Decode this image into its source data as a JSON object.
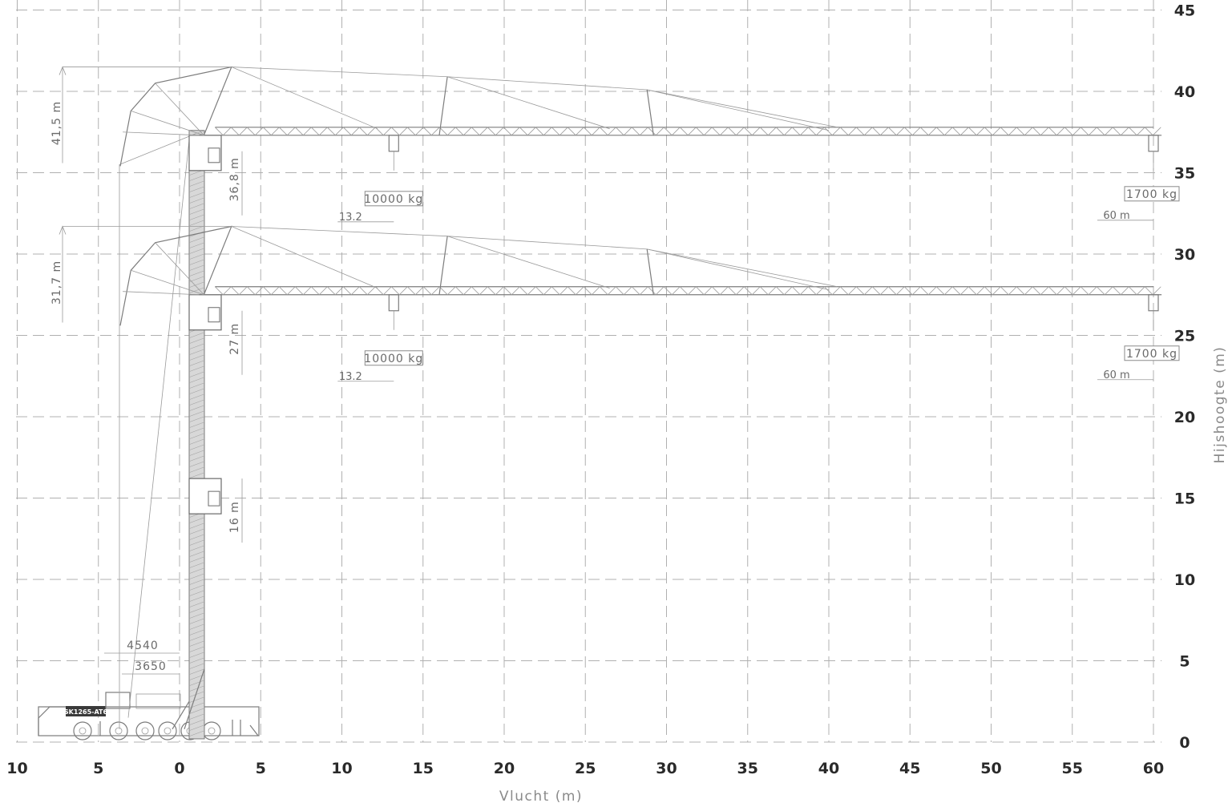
{
  "chart_data": {
    "type": "diagram",
    "xlabel": "Vlucht (m)",
    "ylabel": "Hijshoogte (m)",
    "x_ticks": [
      {
        "label": "10",
        "value": -10
      },
      {
        "label": "5",
        "value": -5
      },
      {
        "label": "0",
        "value": 0
      },
      {
        "label": "5",
        "value": 5
      },
      {
        "label": "10",
        "value": 10
      },
      {
        "label": "15",
        "value": 15
      },
      {
        "label": "20",
        "value": 20
      },
      {
        "label": "25",
        "value": 25
      },
      {
        "label": "30",
        "value": 30
      },
      {
        "label": "35",
        "value": 35
      },
      {
        "label": "40",
        "value": 40
      },
      {
        "label": "45",
        "value": 45
      },
      {
        "label": "50",
        "value": 50
      },
      {
        "label": "55",
        "value": 55
      },
      {
        "label": "60",
        "value": 60
      }
    ],
    "y_ticks": [
      {
        "label": "0",
        "value": 0
      },
      {
        "label": "5",
        "value": 5
      },
      {
        "label": "10",
        "value": 10
      },
      {
        "label": "15",
        "value": 15
      },
      {
        "label": "20",
        "value": 20
      },
      {
        "label": "25",
        "value": 25
      },
      {
        "label": "30",
        "value": 30
      },
      {
        "label": "35",
        "value": 35
      },
      {
        "label": "40",
        "value": 40
      },
      {
        "label": "45",
        "value": 45
      }
    ],
    "xlim": [
      -10,
      60
    ],
    "ylim": [
      0,
      45
    ],
    "grid": true,
    "configurations": [
      {
        "total_height_label": "41,5 m",
        "total_height": 41.5,
        "hook_height_label": "36,8 m",
        "jib_height": 37.3,
        "near_load": {
          "label": "10000 kg",
          "radius_label": "13.2",
          "radius": 13.2
        },
        "tip_load": {
          "label": "1700 kg",
          "radius_label": "60 m",
          "radius": 60
        }
      },
      {
        "total_height_label": "31,7 m",
        "total_height": 31.7,
        "hook_height_label": "27 m",
        "jib_height": 27.5,
        "near_load": {
          "label": "10000 kg",
          "radius_label": "13.2",
          "radius": 13.2
        },
        "tip_load": {
          "label": "1700 kg",
          "radius_label": "60 m",
          "radius": 60
        }
      }
    ],
    "low_cab_height_label": "16 m",
    "chassis": {
      "model_label": "SK1265-AT6",
      "dim_outer": "4540",
      "dim_inner": "3650"
    }
  }
}
